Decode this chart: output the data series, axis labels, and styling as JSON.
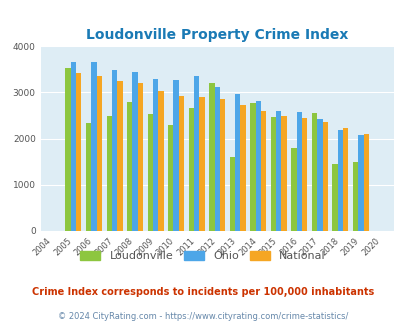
{
  "title": "Loudonville Property Crime Index",
  "title_color": "#1a7ab5",
  "years": [
    2004,
    2005,
    2006,
    2007,
    2008,
    2009,
    2010,
    2011,
    2012,
    2013,
    2014,
    2015,
    2016,
    2017,
    2018,
    2019,
    2020
  ],
  "loudonville": [
    0,
    3520,
    2340,
    2490,
    2800,
    2540,
    2290,
    2660,
    3200,
    1610,
    2760,
    2460,
    1790,
    2560,
    1440,
    1500,
    0
  ],
  "ohio": [
    0,
    3660,
    3660,
    3480,
    3440,
    3290,
    3270,
    3360,
    3120,
    2960,
    2820,
    2590,
    2570,
    2420,
    2180,
    2080,
    0
  ],
  "national": [
    0,
    3420,
    3360,
    3250,
    3200,
    3030,
    2930,
    2910,
    2860,
    2720,
    2600,
    2490,
    2440,
    2360,
    2220,
    2090,
    0
  ],
  "bar_colors": {
    "loudonville": "#8dc63f",
    "ohio": "#4da6e8",
    "national": "#f5a623"
  },
  "plot_bg": "#deedf5",
  "ylim": [
    0,
    4000
  ],
  "yticks": [
    0,
    1000,
    2000,
    3000,
    4000
  ],
  "tick_color": "#555555",
  "footnote1": "Crime Index corresponds to incidents per 100,000 inhabitants",
  "footnote2": "© 2024 CityRating.com - https://www.cityrating.com/crime-statistics/",
  "footnote1_color": "#cc3300",
  "footnote2_color": "#6688aa",
  "legend_labels": [
    "Loudonville",
    "Ohio",
    "National"
  ]
}
